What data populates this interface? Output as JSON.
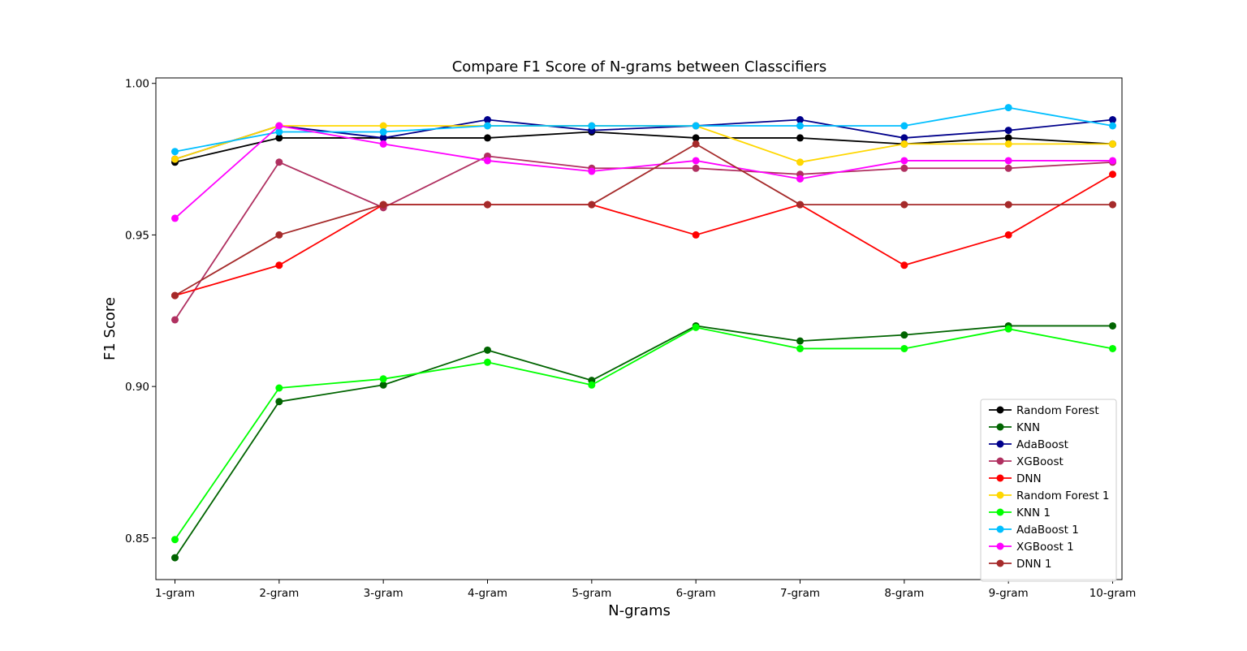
{
  "chart_data": {
    "type": "line",
    "title": "Compare F1 Score of N-grams between Classcifiers",
    "xlabel": "N-grams",
    "ylabel": "F1 Score",
    "categories": [
      "1-gram",
      "2-gram",
      "3-gram",
      "4-gram",
      "5-gram",
      "6-gram",
      "7-gram",
      "8-gram",
      "9-gram",
      "10-gram"
    ],
    "ylim": [
      0.8363,
      1.0018
    ],
    "yticks": [
      0.85,
      0.9,
      0.95,
      1.0
    ],
    "ytick_labels": [
      "0.85",
      "0.90",
      "0.95",
      "1.00"
    ],
    "grid": false,
    "legend_position": "lower-right",
    "series": [
      {
        "name": "Random Forest",
        "color": "#000000",
        "values": [
          0.974,
          0.982,
          0.982,
          0.982,
          0.984,
          0.982,
          0.982,
          0.98,
          0.982,
          0.98
        ]
      },
      {
        "name": "KNN",
        "color": "#006400",
        "values": [
          0.8435,
          0.895,
          0.9005,
          0.912,
          0.902,
          0.92,
          0.915,
          0.917,
          0.92,
          0.92
        ]
      },
      {
        "name": "AdaBoost",
        "color": "#00008b",
        "values": [
          0.975,
          0.986,
          0.982,
          0.988,
          0.9845,
          0.986,
          0.988,
          0.982,
          0.9845,
          0.988
        ]
      },
      {
        "name": "XGBoost",
        "color": "#b03060",
        "values": [
          0.922,
          0.974,
          0.959,
          0.976,
          0.972,
          0.972,
          0.97,
          0.972,
          0.972,
          0.974
        ]
      },
      {
        "name": "DNN",
        "color": "#ff0000",
        "values": [
          0.93,
          0.94,
          0.96,
          0.96,
          0.96,
          0.95,
          0.96,
          0.94,
          0.95,
          0.97
        ]
      },
      {
        "name": "Random Forest 1",
        "color": "#ffd700",
        "values": [
          0.975,
          0.986,
          0.986,
          0.986,
          0.986,
          0.986,
          0.974,
          0.98,
          0.98,
          0.98
        ]
      },
      {
        "name": "KNN 1",
        "color": "#00ff00",
        "values": [
          0.8495,
          0.8995,
          0.9025,
          0.908,
          0.9005,
          0.9195,
          0.9125,
          0.9125,
          0.919,
          0.9125
        ]
      },
      {
        "name": "AdaBoost 1",
        "color": "#00bfff",
        "values": [
          0.9775,
          0.984,
          0.984,
          0.986,
          0.986,
          0.986,
          0.986,
          0.986,
          0.992,
          0.986
        ]
      },
      {
        "name": "XGBoost 1",
        "color": "#ff00ff",
        "values": [
          0.9555,
          0.986,
          0.98,
          0.9745,
          0.971,
          0.9745,
          0.9685,
          0.9745,
          0.9745,
          0.9745
        ]
      },
      {
        "name": "DNN 1",
        "color": "#a52a2a",
        "values": [
          0.93,
          0.95,
          0.96,
          0.96,
          0.96,
          0.98,
          0.96,
          0.96,
          0.96,
          0.96
        ]
      }
    ]
  }
}
